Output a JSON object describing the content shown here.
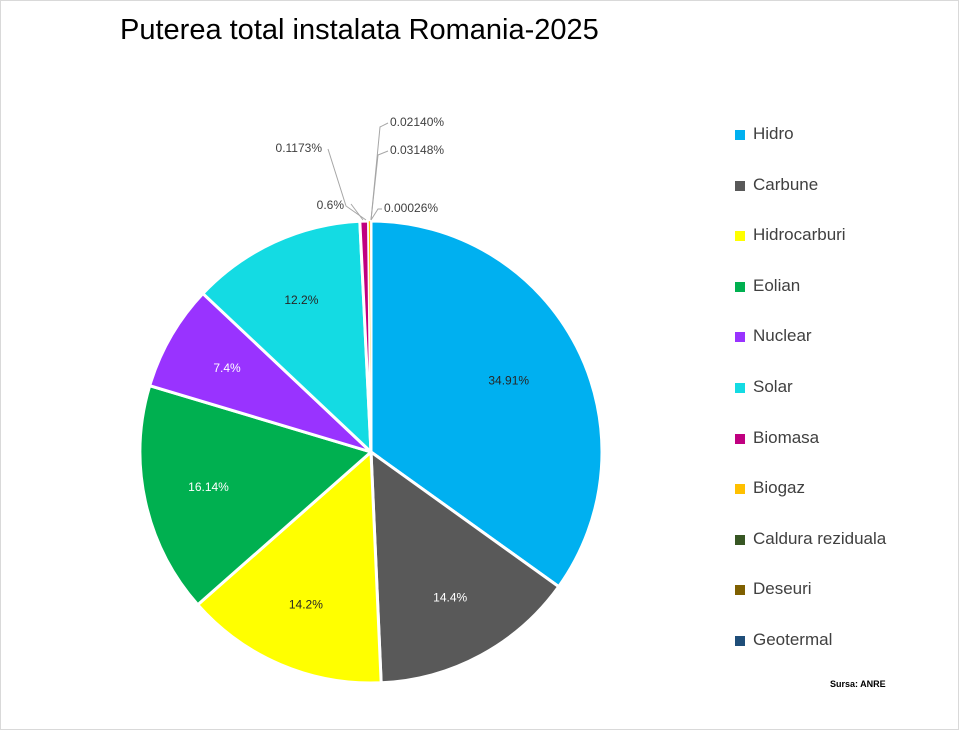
{
  "chart_data": {
    "type": "pie",
    "title": "Puterea total instalata Romania-2025",
    "slices": [
      {
        "name": "Hidro",
        "value": 34.91,
        "label": "34.91%",
        "color": "#00b0f0"
      },
      {
        "name": "Carbune",
        "value": 14.4,
        "label": "14.4%",
        "color": "#595959"
      },
      {
        "name": "Hidrocarburi",
        "value": 14.2,
        "label": "14.2%",
        "color": "#ffff00"
      },
      {
        "name": "Eolian",
        "value": 16.14,
        "label": "16.14%",
        "color": "#00b050"
      },
      {
        "name": "Nuclear",
        "value": 7.4,
        "label": "7.4%",
        "color": "#9933ff"
      },
      {
        "name": "Solar",
        "value": 12.2,
        "label": "12.2%",
        "color": "#14dbe3"
      },
      {
        "name": "Biomasa",
        "value": 0.6,
        "label": "0.6%",
        "color": "#c00080"
      },
      {
        "name": "Biogaz",
        "value": 0.1173,
        "label": "0.1173%",
        "color": "#ffc000"
      },
      {
        "name": "Caldura reziduala",
        "value": 0.0214,
        "label": "0.02140%",
        "color": "#375623"
      },
      {
        "name": "Deseuri",
        "value": 0.03148,
        "label": "0.03148%",
        "color": "#7f6000"
      },
      {
        "name": "Geotermal",
        "value": 0.00026,
        "label": "0.00026%",
        "color": "#1f4e79"
      }
    ],
    "legend_position": "right",
    "source_note": "Sursa: ANRE"
  }
}
